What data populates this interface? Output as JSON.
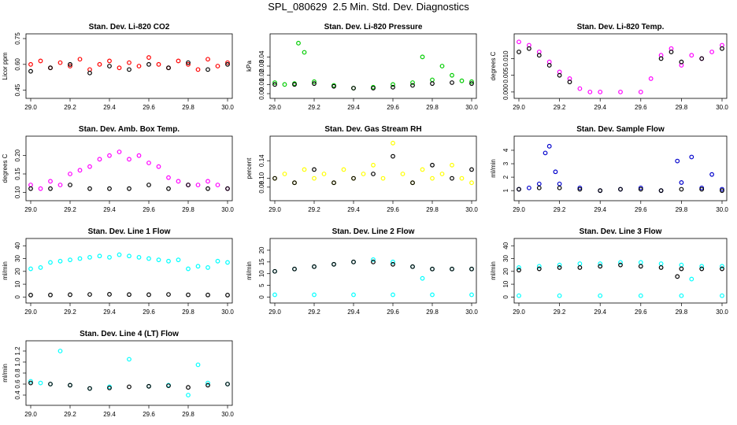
{
  "page": {
    "title": "SPL_080629  2.5 Min. Std. Dev. Diagnostics"
  },
  "chart_data": [
    {
      "type": "scatter",
      "title": "Stan. Dev. Li-820 CO2",
      "ylabel": "Licor ppm",
      "xlabel": "",
      "xlim": [
        29.0,
        30.0
      ],
      "ylim": [
        0.43,
        0.75
      ],
      "xticks": [
        "29.0",
        "29.2",
        "29.4",
        "29.6",
        "29.8",
        "30.0"
      ],
      "yticks": [
        0.45,
        0.6,
        0.75
      ],
      "ytick_labels": [
        "0.45",
        "0.60",
        "0.75"
      ],
      "series": [
        {
          "name": "high-frequency",
          "color": "#ff0000",
          "x": [
            29.0,
            29.05,
            29.1,
            29.15,
            29.2,
            29.25,
            29.3,
            29.35,
            29.4,
            29.45,
            29.5,
            29.55,
            29.6,
            29.65,
            29.7,
            29.75,
            29.8,
            29.85,
            29.9,
            29.95,
            30.0
          ],
          "y": [
            0.6,
            0.62,
            0.58,
            0.61,
            0.59,
            0.63,
            0.57,
            0.6,
            0.62,
            0.58,
            0.61,
            0.59,
            0.64,
            0.6,
            0.58,
            0.62,
            0.6,
            0.57,
            0.63,
            0.59,
            0.61
          ]
        },
        {
          "name": "half-hourly",
          "color": "#000000",
          "x": [
            29.0,
            29.1,
            29.2,
            29.3,
            29.4,
            29.5,
            29.6,
            29.7,
            29.8,
            29.9,
            30.0
          ],
          "y": [
            0.56,
            0.58,
            0.6,
            0.55,
            0.59,
            0.57,
            0.6,
            0.58,
            0.61,
            0.57,
            0.6
          ]
        }
      ]
    },
    {
      "type": "scatter",
      "title": "Stan. Dev. Li-820 Pressure",
      "ylabel": "kPa",
      "xlabel": "",
      "xlim": [
        29.0,
        30.0
      ],
      "ylim": [
        0.0,
        0.06
      ],
      "xticks": [
        "29.0",
        "29.2",
        "29.4",
        "29.6",
        "29.8",
        "30.0"
      ],
      "yticks": [
        0.0,
        0.01,
        0.02,
        0.03,
        0.04
      ],
      "ytick_labels": [
        "0.00",
        "0.01",
        "0.02",
        "0.03",
        "0.04"
      ],
      "series": [
        {
          "name": "high-frequency",
          "color": "#00cc00",
          "x": [
            29.0,
            29.05,
            29.1,
            29.12,
            29.15,
            29.2,
            29.3,
            29.4,
            29.5,
            29.6,
            29.7,
            29.75,
            29.8,
            29.85,
            29.9,
            29.95,
            30.0
          ],
          "y": [
            0.012,
            0.01,
            0.011,
            0.055,
            0.045,
            0.013,
            0.009,
            0.006,
            0.007,
            0.01,
            0.012,
            0.04,
            0.015,
            0.03,
            0.02,
            0.014,
            0.013
          ]
        },
        {
          "name": "half-hourly",
          "color": "#000000",
          "x": [
            29.0,
            29.1,
            29.2,
            29.3,
            29.4,
            29.5,
            29.6,
            29.7,
            29.8,
            29.9,
            30.0
          ],
          "y": [
            0.01,
            0.01,
            0.011,
            0.008,
            0.006,
            0.006,
            0.007,
            0.009,
            0.011,
            0.012,
            0.011
          ]
        }
      ]
    },
    {
      "type": "scatter",
      "title": "Stan. Dev. Li-820 Temp.",
      "ylabel": "degrees C",
      "xlabel": "",
      "xlim": [
        29.0,
        30.0
      ],
      "ylim": [
        -0.0005,
        0.016
      ],
      "xticks": [
        "29.0",
        "29.2",
        "29.4",
        "29.6",
        "29.8",
        "30.0"
      ],
      "yticks": [
        0.0,
        0.005,
        0.01
      ],
      "ytick_labels": [
        "0.000",
        "0.005",
        "0.010"
      ],
      "series": [
        {
          "name": "high-frequency",
          "color": "#ff00ff",
          "x": [
            29.0,
            29.05,
            29.1,
            29.15,
            29.2,
            29.25,
            29.3,
            29.35,
            29.4,
            29.5,
            29.6,
            29.65,
            29.7,
            29.75,
            29.8,
            29.85,
            29.9,
            29.95,
            30.0
          ],
          "y": [
            0.015,
            0.014,
            0.012,
            0.009,
            0.006,
            0.004,
            0.001,
            0.0,
            0.0,
            0.0,
            0.0,
            0.004,
            0.011,
            0.013,
            0.008,
            0.011,
            0.01,
            0.012,
            0.014
          ]
        },
        {
          "name": "half-hourly",
          "color": "#000000",
          "x": [
            29.0,
            29.05,
            29.1,
            29.15,
            29.2,
            29.25,
            29.7,
            29.75,
            29.8,
            29.9,
            30.0
          ],
          "y": [
            0.012,
            0.013,
            0.011,
            0.008,
            0.005,
            0.003,
            0.01,
            0.012,
            0.009,
            0.01,
            0.013
          ]
        }
      ]
    },
    {
      "type": "scatter",
      "title": "Stan. Dev. Amb. Box Temp.",
      "ylabel": "degrees C",
      "xlabel": "",
      "xlim": [
        29.0,
        30.0
      ],
      "ylim": [
        0.09,
        0.24
      ],
      "xticks": [
        "29.0",
        "29.2",
        "29.4",
        "29.6",
        "29.8",
        "30.0"
      ],
      "yticks": [
        0.1,
        0.15,
        0.2
      ],
      "ytick_labels": [
        "0.10",
        "0.15",
        "0.20"
      ],
      "series": [
        {
          "name": "high-frequency",
          "color": "#ff00ff",
          "x": [
            29.0,
            29.05,
            29.1,
            29.15,
            29.2,
            29.25,
            29.3,
            29.35,
            29.4,
            29.45,
            29.5,
            29.55,
            29.6,
            29.65,
            29.7,
            29.75,
            29.8,
            29.85,
            29.9,
            29.95,
            30.0
          ],
          "y": [
            0.12,
            0.11,
            0.13,
            0.12,
            0.15,
            0.16,
            0.17,
            0.19,
            0.2,
            0.21,
            0.19,
            0.2,
            0.18,
            0.17,
            0.14,
            0.13,
            0.12,
            0.12,
            0.13,
            0.12,
            0.11
          ]
        },
        {
          "name": "half-hourly",
          "color": "#000000",
          "x": [
            29.0,
            29.1,
            29.2,
            29.3,
            29.4,
            29.5,
            29.6,
            29.7,
            29.8,
            29.9,
            30.0
          ],
          "y": [
            0.11,
            0.11,
            0.12,
            0.11,
            0.11,
            0.11,
            0.12,
            0.11,
            0.12,
            0.11,
            0.11
          ]
        }
      ]
    },
    {
      "type": "scatter",
      "title": "Stan. Dev. Gas Stream RH",
      "ylabel": "percent",
      "xlabel": "",
      "xlim": [
        29.0,
        30.0
      ],
      "ylim": [
        0.06,
        0.185
      ],
      "xticks": [
        "29.0",
        "29.2",
        "29.4",
        "29.6",
        "29.8",
        "30.0"
      ],
      "yticks": [
        0.08,
        0.1,
        0.14
      ],
      "ytick_labels": [
        "0.08",
        "0.10",
        "0.14"
      ],
      "series": [
        {
          "name": "high-frequency",
          "color": "#ffff00",
          "x": [
            29.0,
            29.05,
            29.1,
            29.15,
            29.2,
            29.25,
            29.3,
            29.35,
            29.4,
            29.45,
            29.5,
            29.55,
            29.6,
            29.65,
            29.7,
            29.75,
            29.8,
            29.85,
            29.9,
            29.95,
            30.0
          ],
          "y": [
            0.1,
            0.11,
            0.09,
            0.12,
            0.1,
            0.11,
            0.09,
            0.12,
            0.1,
            0.11,
            0.13,
            0.1,
            0.18,
            0.11,
            0.09,
            0.12,
            0.1,
            0.11,
            0.13,
            0.1,
            0.09
          ]
        },
        {
          "name": "half-hourly",
          "color": "#000000",
          "x": [
            29.0,
            29.1,
            29.2,
            29.3,
            29.4,
            29.5,
            29.6,
            29.7,
            29.8,
            29.9,
            30.0
          ],
          "y": [
            0.1,
            0.09,
            0.12,
            0.09,
            0.1,
            0.11,
            0.15,
            0.09,
            0.13,
            0.1,
            0.12
          ]
        }
      ]
    },
    {
      "type": "scatter",
      "title": "Stan. Dev. Sample Flow",
      "ylabel": "ml/min",
      "xlabel": "",
      "xlim": [
        29.0,
        30.0
      ],
      "ylim": [
        0.6,
        4.7
      ],
      "xticks": [
        "29.0",
        "29.2",
        "29.4",
        "29.6",
        "29.8",
        "30.0"
      ],
      "yticks": [
        1,
        2,
        3,
        4
      ],
      "ytick_labels": [
        "1",
        "2",
        "3",
        "4"
      ],
      "series": [
        {
          "name": "high-frequency",
          "color": "#0000cc",
          "x": [
            29.0,
            29.05,
            29.1,
            29.13,
            29.15,
            29.18,
            29.2,
            29.3,
            29.4,
            29.5,
            29.6,
            29.7,
            29.78,
            29.8,
            29.85,
            29.9,
            29.95,
            30.0
          ],
          "y": [
            1.1,
            1.2,
            1.5,
            3.8,
            4.3,
            2.4,
            1.5,
            1.2,
            1.0,
            1.1,
            1.2,
            1.0,
            3.2,
            1.6,
            3.5,
            1.2,
            2.2,
            1.1
          ]
        },
        {
          "name": "half-hourly",
          "color": "#000000",
          "x": [
            29.0,
            29.1,
            29.2,
            29.3,
            29.4,
            29.5,
            29.6,
            29.7,
            29.8,
            29.9,
            30.0
          ],
          "y": [
            1.1,
            1.2,
            1.2,
            1.1,
            1.0,
            1.1,
            1.1,
            1.0,
            1.1,
            1.1,
            1.0
          ]
        }
      ]
    },
    {
      "type": "scatter",
      "title": "Stan. Dev. Line 1 Flow",
      "ylabel": "ml/min",
      "xlabel": "",
      "xlim": [
        29.0,
        30.0
      ],
      "ylim": [
        -1,
        42
      ],
      "xticks": [
        "29.0",
        "29.2",
        "29.4",
        "29.6",
        "29.8",
        "30.0"
      ],
      "yticks": [
        0,
        10,
        20,
        30,
        40
      ],
      "ytick_labels": [
        "0",
        "10",
        "20",
        "30",
        "40"
      ],
      "series": [
        {
          "name": "high-frequency",
          "color": "#00ffff",
          "x": [
            29.0,
            29.05,
            29.1,
            29.15,
            29.2,
            29.25,
            29.3,
            29.35,
            29.4,
            29.45,
            29.5,
            29.55,
            29.6,
            29.65,
            29.7,
            29.75,
            29.8,
            29.85,
            29.9,
            29.95,
            30.0
          ],
          "y": [
            22,
            23,
            27,
            28,
            29,
            30,
            31,
            32,
            31,
            33,
            32,
            31,
            30,
            29,
            28,
            29,
            22,
            24,
            23,
            28,
            27
          ]
        },
        {
          "name": "half-hourly",
          "color": "#000000",
          "x": [
            29.0,
            29.1,
            29.2,
            29.3,
            29.4,
            29.5,
            29.6,
            29.7,
            29.8,
            29.9,
            30.0
          ],
          "y": [
            1.5,
            1.6,
            1.8,
            2.0,
            2.1,
            1.9,
            1.8,
            2.0,
            1.7,
            1.6,
            1.5
          ]
        }
      ]
    },
    {
      "type": "scatter",
      "title": "Stan. Dev. Line 2 Flow",
      "ylabel": "ml/min",
      "xlabel": "",
      "xlim": [
        29.0,
        30.0
      ],
      "ylim": [
        -0.5,
        23
      ],
      "xticks": [
        "29.0",
        "29.2",
        "29.4",
        "29.6",
        "29.8",
        "30.0"
      ],
      "yticks": [
        0,
        5,
        10,
        15,
        20
      ],
      "ytick_labels": [
        "0",
        "5",
        "10",
        "15",
        "20"
      ],
      "series": [
        {
          "name": "high-frequency",
          "color": "#00ffff",
          "x": [
            29.0,
            29.1,
            29.2,
            29.3,
            29.4,
            29.5,
            29.6,
            29.7,
            29.75,
            29.8,
            29.9,
            30.0
          ],
          "y": [
            11,
            12,
            13,
            14,
            15,
            16,
            15,
            13,
            8,
            12,
            12,
            12
          ]
        },
        {
          "name": "half-hourly",
          "color": "#000000",
          "x": [
            29.0,
            29.1,
            29.2,
            29.3,
            29.4,
            29.5,
            29.6,
            29.7,
            29.8,
            29.9,
            30.0
          ],
          "y": [
            11,
            12,
            13,
            14,
            15,
            15,
            14,
            13,
            12,
            12,
            12
          ]
        },
        {
          "name": "baseline",
          "color": "#00ffff",
          "x": [
            29.0,
            29.2,
            29.4,
            29.6,
            29.8,
            30.0
          ],
          "y": [
            1,
            1,
            1,
            1,
            1,
            1
          ]
        }
      ]
    },
    {
      "type": "scatter",
      "title": "Stan. Dev. Line 3 Flow",
      "ylabel": "ml/min",
      "xlabel": "",
      "xlim": [
        29.0,
        30.0
      ],
      "ylim": [
        -1,
        42
      ],
      "xticks": [
        "29.0",
        "29.2",
        "29.4",
        "29.6",
        "29.8",
        "30.0"
      ],
      "yticks": [
        0,
        10,
        20,
        30,
        40
      ],
      "ytick_labels": [
        "0",
        "10",
        "20",
        "30",
        "40"
      ],
      "series": [
        {
          "name": "high-frequency",
          "color": "#00ffff",
          "x": [
            29.0,
            29.1,
            29.2,
            29.3,
            29.4,
            29.5,
            29.6,
            29.7,
            29.8,
            29.85,
            29.9,
            30.0
          ],
          "y": [
            23,
            24,
            25,
            26,
            26,
            27,
            27,
            26,
            25,
            14,
            24,
            24
          ]
        },
        {
          "name": "half-hourly",
          "color": "#000000",
          "x": [
            29.0,
            29.1,
            29.2,
            29.3,
            29.4,
            29.5,
            29.6,
            29.7,
            29.78,
            29.8,
            29.9,
            30.0
          ],
          "y": [
            21,
            22,
            23,
            23,
            24,
            25,
            24,
            23,
            16,
            22,
            22,
            22
          ]
        },
        {
          "name": "baseline",
          "color": "#00ffff",
          "x": [
            29.0,
            29.2,
            29.4,
            29.6,
            29.8,
            30.0
          ],
          "y": [
            1,
            1,
            1,
            1,
            1,
            1
          ]
        }
      ]
    },
    {
      "type": "scatter",
      "title": "Stan. Dev. Line 4 (LT) Flow",
      "ylabel": "ml/min",
      "xlabel": "",
      "xlim": [
        29.0,
        30.0
      ],
      "ylim": [
        0.3,
        1.3
      ],
      "xticks": [
        "29.0",
        "29.2",
        "29.4",
        "29.6",
        "29.8",
        "30.0"
      ],
      "yticks": [
        0.4,
        0.6,
        0.8,
        1.0,
        1.2
      ],
      "ytick_labels": [
        "0.4",
        "0.6",
        "0.8",
        "1.0",
        "1.2"
      ],
      "series": [
        {
          "name": "high-frequency",
          "color": "#00ffff",
          "x": [
            29.0,
            29.05,
            29.1,
            29.15,
            29.2,
            29.3,
            29.4,
            29.5,
            29.6,
            29.7,
            29.8,
            29.85,
            29.9,
            30.0
          ],
          "y": [
            0.65,
            0.62,
            0.6,
            1.2,
            0.58,
            0.52,
            0.55,
            1.05,
            0.56,
            0.58,
            0.4,
            0.95,
            0.62,
            0.6
          ]
        },
        {
          "name": "half-hourly",
          "color": "#000000",
          "x": [
            29.0,
            29.1,
            29.2,
            29.3,
            29.4,
            29.5,
            29.6,
            29.7,
            29.8,
            29.9,
            30.0
          ],
          "y": [
            0.62,
            0.6,
            0.58,
            0.52,
            0.53,
            0.55,
            0.56,
            0.57,
            0.54,
            0.58,
            0.6
          ]
        }
      ]
    }
  ]
}
